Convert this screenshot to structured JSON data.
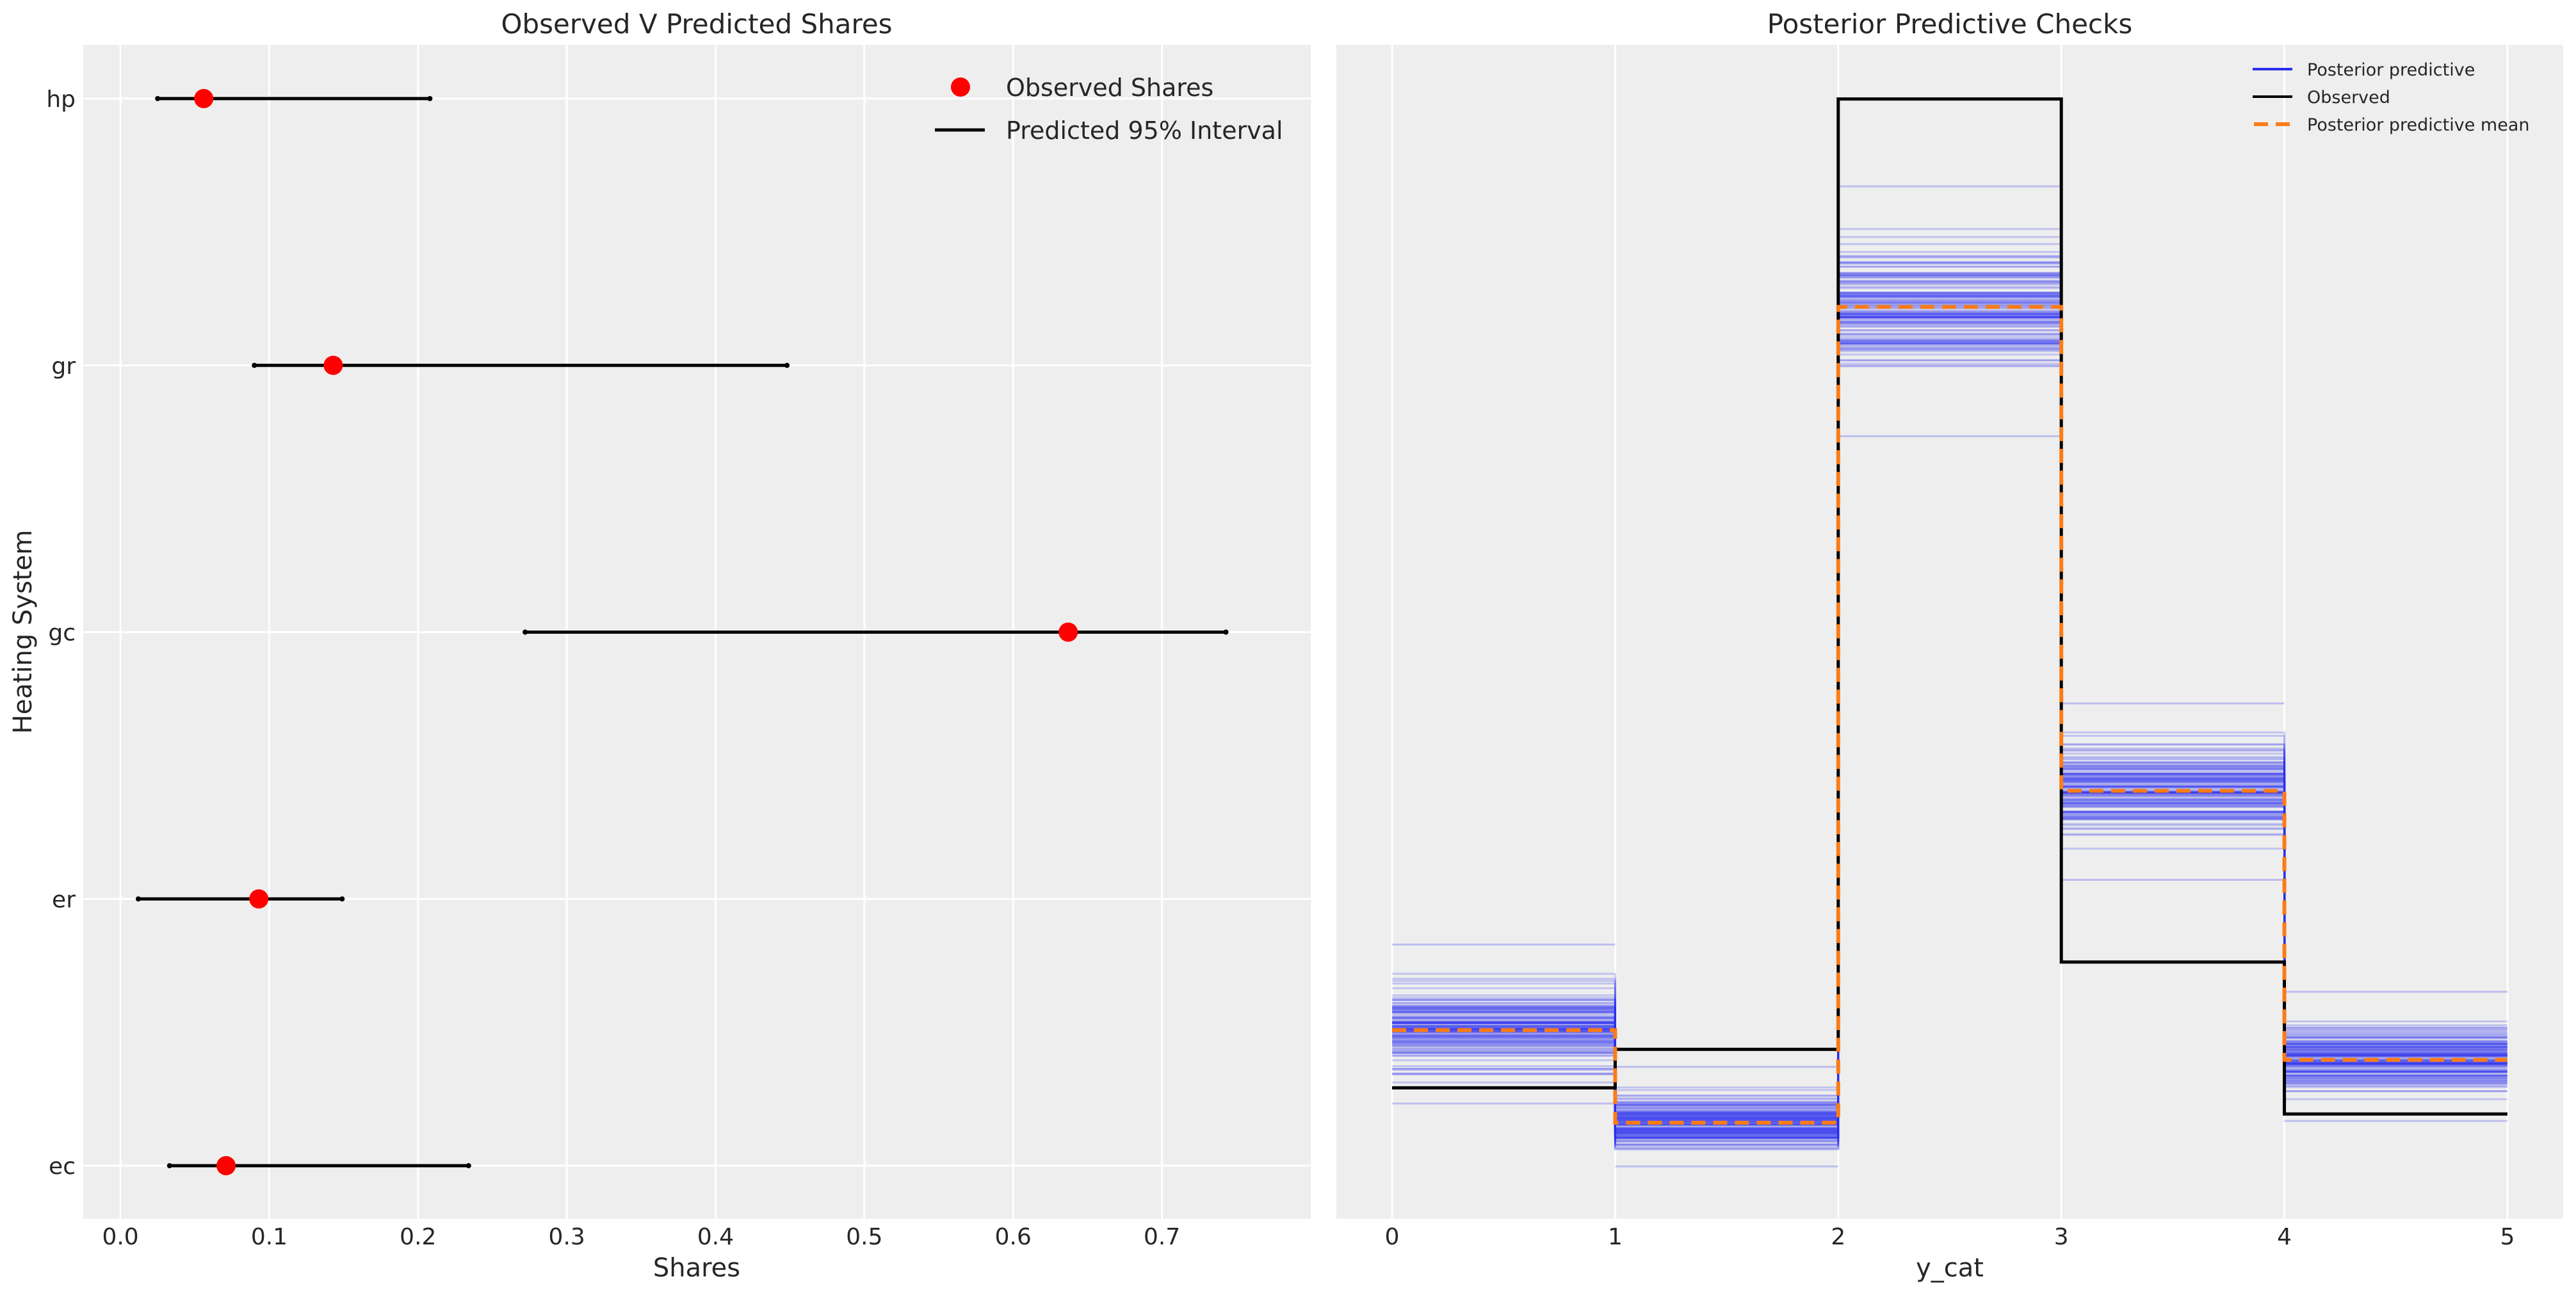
{
  "chart_data": [
    {
      "type": "scatter",
      "title": "Observed V Predicted Shares",
      "xlabel": "Shares",
      "ylabel": "Heating System",
      "xlim": [
        -0.025,
        0.8
      ],
      "xticks": [
        "0.0",
        "0.1",
        "0.2",
        "0.3",
        "0.4",
        "0.5",
        "0.6",
        "0.7"
      ],
      "xtick_values": [
        0.0,
        0.1,
        0.2,
        0.3,
        0.4,
        0.5,
        0.6,
        0.7
      ],
      "categories": [
        "hp",
        "gr",
        "gc",
        "er",
        "ec"
      ],
      "observed": [
        0.056,
        0.143,
        0.637,
        0.093,
        0.071
      ],
      "interval_low": [
        0.025,
        0.09,
        0.272,
        0.012,
        0.033
      ],
      "interval_high": [
        0.208,
        0.448,
        0.743,
        0.149,
        0.234
      ],
      "grid": true,
      "legend": {
        "position": "top-right",
        "entries": [
          {
            "label": "Observed Shares",
            "color": "#ff0000",
            "marker": "circle"
          },
          {
            "label": "Predicted 95% Interval",
            "color": "#000000",
            "marker": "line"
          }
        ]
      }
    },
    {
      "type": "line",
      "title": "Posterior Predictive Checks",
      "xlabel": "y_cat",
      "ylabel": "",
      "xlim": [
        -0.25,
        5.25
      ],
      "ylim": [
        -0.004,
        0.668
      ],
      "xticks": [
        "0",
        "1",
        "2",
        "3",
        "4",
        "5"
      ],
      "xtick_values": [
        0,
        1,
        2,
        3,
        4,
        5
      ],
      "bins": [
        0,
        1,
        2,
        3,
        4
      ],
      "observed": [
        0.071,
        0.093,
        0.637,
        0.143,
        0.056
      ],
      "posterior_predictive_mean": [
        0.104,
        0.051,
        0.518,
        0.241,
        0.087
      ],
      "posterior_predictive_low": [
        0.062,
        0.026,
        0.444,
        0.19,
        0.052
      ],
      "posterior_predictive_high": [
        0.153,
        0.083,
        0.587,
        0.291,
        0.126
      ],
      "grid": true,
      "legend": {
        "position": "top-right",
        "entries": [
          {
            "label": "Posterior predictive",
            "color": "#2a2eec",
            "style": "solid"
          },
          {
            "label": "Observed",
            "color": "#000000",
            "style": "solid"
          },
          {
            "label": "Posterior predictive mean",
            "color": "#fa7c17",
            "style": "dashed"
          }
        ]
      }
    }
  ],
  "colors": {
    "panel_bg": "#eeeeee",
    "grid": "#ffffff",
    "observed_marker": "#ff0000",
    "interval": "#000000",
    "posterior": "#2a2eec",
    "observed_line": "#000000",
    "mean_line": "#fa7c17"
  }
}
